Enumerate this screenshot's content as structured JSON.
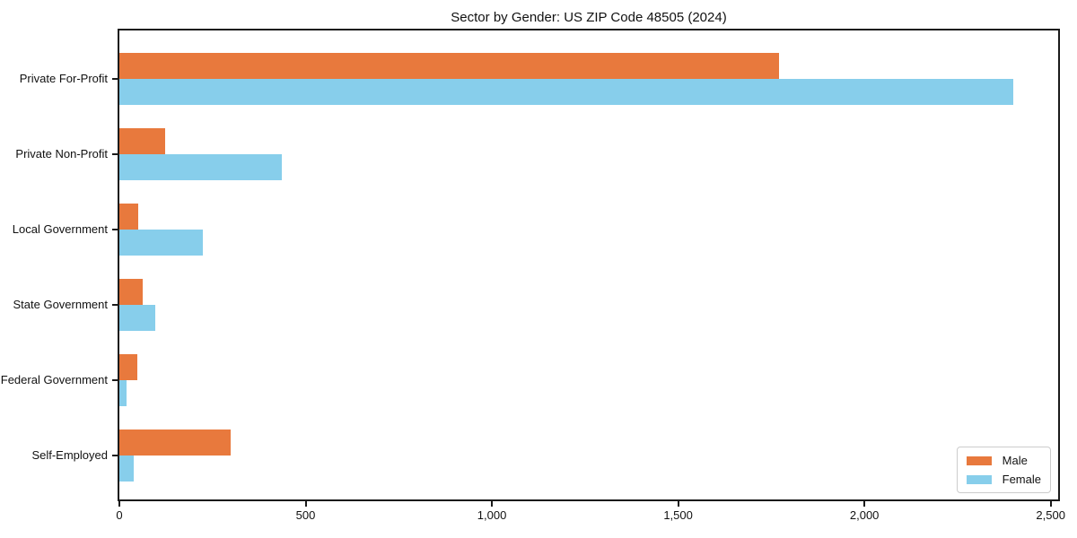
{
  "figure": {
    "background": "#ffffff",
    "axis_color": "#1a1a1a"
  },
  "chart_data": {
    "type": "bar",
    "orientation": "horizontal",
    "title": "Sector by Gender: US ZIP Code 48505 (2024)",
    "categories": [
      "Private For-Profit",
      "Private Non-Profit",
      "Local Government",
      "State Government",
      "Federal Government",
      "Self-Employed"
    ],
    "series": [
      {
        "name": "Male",
        "color": "#E8793D",
        "values": [
          1770,
          123,
          50,
          63,
          49,
          298
        ]
      },
      {
        "name": "Female",
        "color": "#87CEEB",
        "values": [
          2400,
          437,
          224,
          96,
          19,
          38
        ]
      }
    ],
    "xlabel": "",
    "ylabel": "",
    "xlim": [
      0,
      2520
    ],
    "xticks": [
      0,
      500,
      1000,
      1500,
      2000,
      2500
    ],
    "xtick_labels": [
      "0",
      "500",
      "1,000",
      "1,500",
      "2,000",
      "2,500"
    ],
    "grid": false,
    "legend": {
      "position": "lower right",
      "labels": [
        "Male",
        "Female"
      ]
    }
  }
}
